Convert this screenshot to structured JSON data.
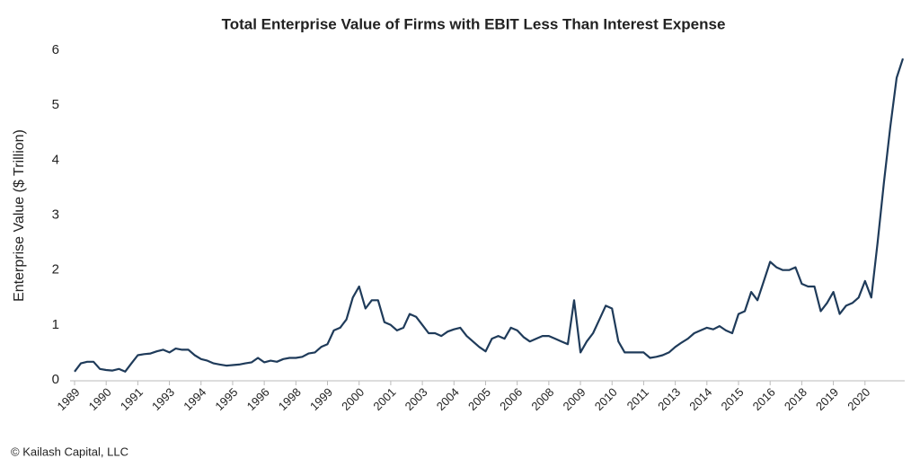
{
  "chart_data": {
    "type": "line",
    "title": "Total Enterprise Value of Firms with EBIT Less Than Interest Expense",
    "y_label": "Enterprise Value ($ Trillion)",
    "footer": "© Kailash Capital, LLC",
    "categories": [
      "1989",
      null,
      null,
      null,
      null,
      "1990",
      null,
      null,
      null,
      null,
      "1991",
      null,
      null,
      null,
      null,
      "1993",
      null,
      null,
      null,
      null,
      "1994",
      null,
      null,
      null,
      null,
      "1995",
      null,
      null,
      null,
      null,
      "1996",
      null,
      null,
      null,
      null,
      "1998",
      null,
      null,
      null,
      null,
      "1999",
      null,
      null,
      null,
      null,
      "2000",
      null,
      null,
      null,
      null,
      "2001",
      null,
      null,
      null,
      null,
      "2003",
      null,
      null,
      null,
      null,
      "2004",
      null,
      null,
      null,
      null,
      "2005",
      null,
      null,
      null,
      null,
      "2006",
      null,
      null,
      null,
      null,
      "2008",
      null,
      null,
      null,
      null,
      "2009",
      null,
      null,
      null,
      null,
      "2010",
      null,
      null,
      null,
      null,
      "2011",
      null,
      null,
      null,
      null,
      "2013",
      null,
      null,
      null,
      null,
      "2014",
      null,
      null,
      null,
      null,
      "2015",
      null,
      null,
      null,
      null,
      "2016",
      null,
      null,
      null,
      null,
      "2018",
      null,
      null,
      null,
      null,
      "2019",
      null,
      null,
      null,
      null,
      "2020",
      null,
      null,
      null,
      null,
      null,
      null
    ],
    "series": [
      {
        "name": "Enterprise Value",
        "color": "#1f3b5a",
        "values": [
          0.15,
          0.3,
          0.33,
          0.33,
          0.2,
          0.18,
          0.17,
          0.2,
          0.15,
          0.3,
          0.45,
          0.47,
          0.48,
          0.52,
          0.55,
          0.5,
          0.57,
          0.55,
          0.55,
          0.45,
          0.38,
          0.35,
          0.3,
          0.28,
          0.26,
          0.27,
          0.28,
          0.3,
          0.32,
          0.4,
          0.32,
          0.35,
          0.33,
          0.38,
          0.4,
          0.4,
          0.42,
          0.48,
          0.5,
          0.6,
          0.65,
          0.9,
          0.95,
          1.1,
          1.5,
          1.7,
          1.3,
          1.45,
          1.45,
          1.05,
          1.0,
          0.9,
          0.95,
          1.2,
          1.15,
          1.0,
          0.85,
          0.85,
          0.8,
          0.88,
          0.92,
          0.95,
          0.8,
          0.7,
          0.6,
          0.52,
          0.75,
          0.8,
          0.75,
          0.95,
          0.9,
          0.78,
          0.7,
          0.75,
          0.8,
          0.8,
          0.75,
          0.7,
          0.65,
          1.45,
          0.5,
          0.7,
          0.85,
          1.1,
          1.35,
          1.3,
          0.7,
          0.5,
          0.5,
          0.5,
          0.5,
          0.4,
          0.42,
          0.45,
          0.5,
          0.6,
          0.68,
          0.75,
          0.85,
          0.9,
          0.95,
          0.92,
          0.98,
          0.9,
          0.85,
          1.2,
          1.25,
          1.6,
          1.45,
          1.8,
          2.15,
          2.05,
          2.0,
          2.0,
          2.05,
          1.75,
          1.7,
          1.7,
          1.25,
          1.4,
          1.6,
          1.2,
          1.35,
          1.4,
          1.5,
          1.8,
          1.5,
          2.5,
          3.6,
          4.6,
          5.5,
          5.85
        ]
      }
    ],
    "ylim": [
      0,
      6
    ],
    "yticks": [
      0,
      1,
      2,
      3,
      4,
      5,
      6
    ],
    "grid": false
  }
}
